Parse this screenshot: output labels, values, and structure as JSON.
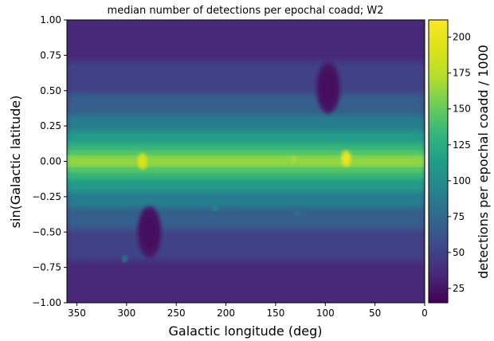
{
  "chart_data": {
    "type": "heatmap",
    "title": "median number of detections per epochal coadd; W2",
    "xlabel": "Galactic longitude (deg)",
    "ylabel": "sin(Galactic latitude)",
    "colorbar_label": "detections per epochal coadd / 1000",
    "xlim": [
      360,
      0
    ],
    "ylim": [
      -1.0,
      1.0
    ],
    "x_ticks": [
      350,
      300,
      250,
      200,
      150,
      100,
      50,
      0
    ],
    "y_ticks": [
      1.0,
      0.75,
      0.5,
      0.25,
      0.0,
      -0.25,
      -0.5,
      -0.75,
      -1.0
    ],
    "y_tick_labels": [
      "1.00",
      "0.75",
      "0.50",
      "0.25",
      "0.00",
      "−0.25",
      "−0.50",
      "−0.75",
      "−1.00"
    ],
    "colorbar_range": [
      15,
      212
    ],
    "colorbar_ticks": [
      25,
      50,
      75,
      100,
      125,
      150,
      175,
      200
    ],
    "colormap": "viridis",
    "background_level": 35,
    "galactic_plane_peak": 165,
    "features": [
      {
        "name": "galactic-plane",
        "x": 180,
        "y": 0.0,
        "value": 165
      },
      {
        "name": "ecliptic-pole-north",
        "x": 97,
        "y": 0.52,
        "value": 20
      },
      {
        "name": "ecliptic-pole-south",
        "x": 277,
        "y": -0.5,
        "value": 20
      },
      {
        "name": "plane-bright-spot-80",
        "x": 79,
        "y": 0.02,
        "value": 200
      },
      {
        "name": "plane-bright-spot-285",
        "x": 284,
        "y": 0.0,
        "value": 190
      },
      {
        "name": "lmc-region",
        "x": 302,
        "y": -0.69,
        "value": 90
      },
      {
        "name": "knot-211",
        "x": 211,
        "y": -0.33,
        "value": 95
      },
      {
        "name": "knot-132",
        "x": 132,
        "y": 0.01,
        "value": 170
      },
      {
        "name": "knot-128",
        "x": 128,
        "y": -0.37,
        "value": 85
      }
    ]
  }
}
